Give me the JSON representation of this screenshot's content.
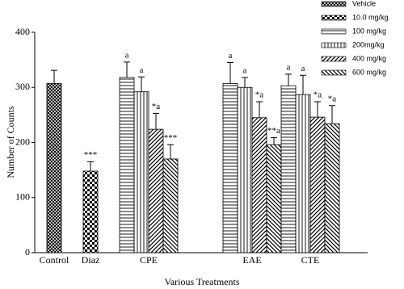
{
  "chart_data": {
    "type": "bar",
    "x_label": "Various Treatments",
    "y_label": "Number of Counts",
    "categories": [
      "Control",
      "Diaz",
      "CPE",
      "EAE",
      "CTE"
    ],
    "ylim": [
      0,
      400
    ],
    "yticks": [
      0,
      100,
      200,
      300,
      400
    ],
    "legend_position": "upper right",
    "series": [
      {
        "name": "Vehicle",
        "pattern": "crosshatch",
        "values": [
          307,
          null,
          null,
          null,
          null
        ],
        "errors": [
          24,
          null,
          null,
          null,
          null
        ],
        "annotations": [
          null,
          null,
          null,
          null,
          null
        ]
      },
      {
        "name": "10.0 mg/kg",
        "pattern": "checker",
        "values": [
          null,
          148,
          null,
          null,
          null
        ],
        "errors": [
          null,
          17,
          null,
          null,
          null
        ],
        "annotations": [
          null,
          "***",
          null,
          null,
          null
        ]
      },
      {
        "name": "100 mg/kg",
        "pattern": "horizontal",
        "values": [
          null,
          null,
          318,
          307,
          303
        ],
        "errors": [
          null,
          null,
          28,
          38,
          21
        ],
        "annotations": [
          null,
          null,
          "a",
          "a",
          "a"
        ]
      },
      {
        "name": "200mg/kg",
        "pattern": "vertical",
        "values": [
          null,
          null,
          292,
          300,
          287
        ],
        "errors": [
          null,
          null,
          27,
          18,
          35
        ],
        "annotations": [
          null,
          null,
          "a",
          "a",
          "a"
        ]
      },
      {
        "name": "400 mg/kg",
        "pattern": "diagonal-up",
        "values": [
          null,
          null,
          224,
          245,
          246
        ],
        "errors": [
          null,
          null,
          29,
          29,
          28
        ],
        "annotations": [
          null,
          null,
          "*a",
          "*a",
          "*a"
        ]
      },
      {
        "name": "600 mg/kg",
        "pattern": "diagonal-down",
        "values": [
          null,
          null,
          170,
          196,
          234
        ],
        "errors": [
          null,
          null,
          26,
          13,
          33
        ],
        "annotations": [
          null,
          null,
          "***",
          "**a",
          "*a"
        ]
      }
    ]
  }
}
